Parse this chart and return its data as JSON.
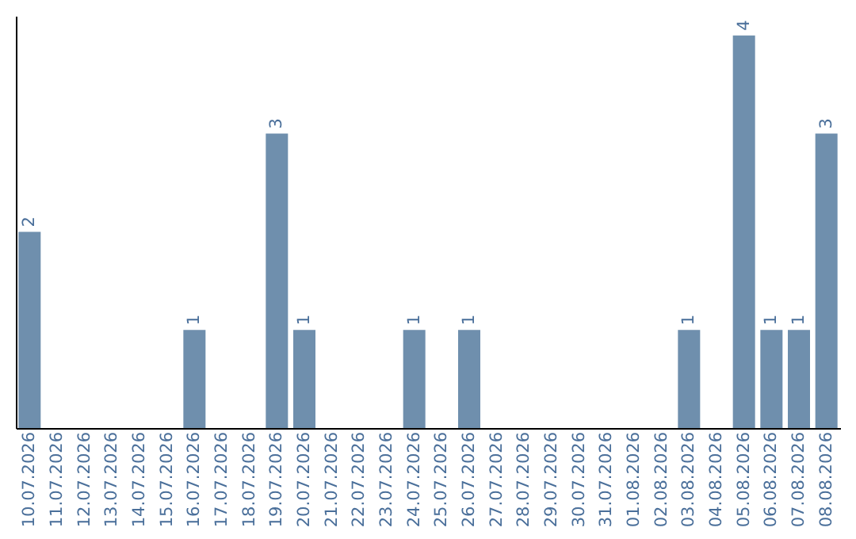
{
  "chart_data": {
    "type": "bar",
    "categories": [
      "10.07.2026",
      "11.07.2026",
      "12.07.2026",
      "13.07.2026",
      "14.07.2026",
      "15.07.2026",
      "16.07.2026",
      "17.07.2026",
      "18.07.2026",
      "19.07.2026",
      "20.07.2026",
      "21.07.2026",
      "22.07.2026",
      "23.07.2026",
      "24.07.2026",
      "25.07.2026",
      "26.07.2026",
      "27.07.2026",
      "28.07.2026",
      "29.07.2026",
      "30.07.2026",
      "31.07.2026",
      "01.08.2026",
      "02.08.2026",
      "03.08.2026",
      "04.08.2026",
      "05.08.2026",
      "06.08.2026",
      "07.08.2026",
      "08.08.2026"
    ],
    "values": [
      2,
      null,
      null,
      null,
      null,
      null,
      1,
      null,
      null,
      3,
      1,
      null,
      null,
      null,
      1,
      null,
      1,
      null,
      null,
      null,
      null,
      null,
      null,
      null,
      1,
      null,
      4,
      1,
      1,
      3
    ],
    "color": "#6f8fad",
    "ylim": [
      0,
      4.2
    ],
    "data_labels": true,
    "grid": false,
    "tick_labels": "x"
  }
}
